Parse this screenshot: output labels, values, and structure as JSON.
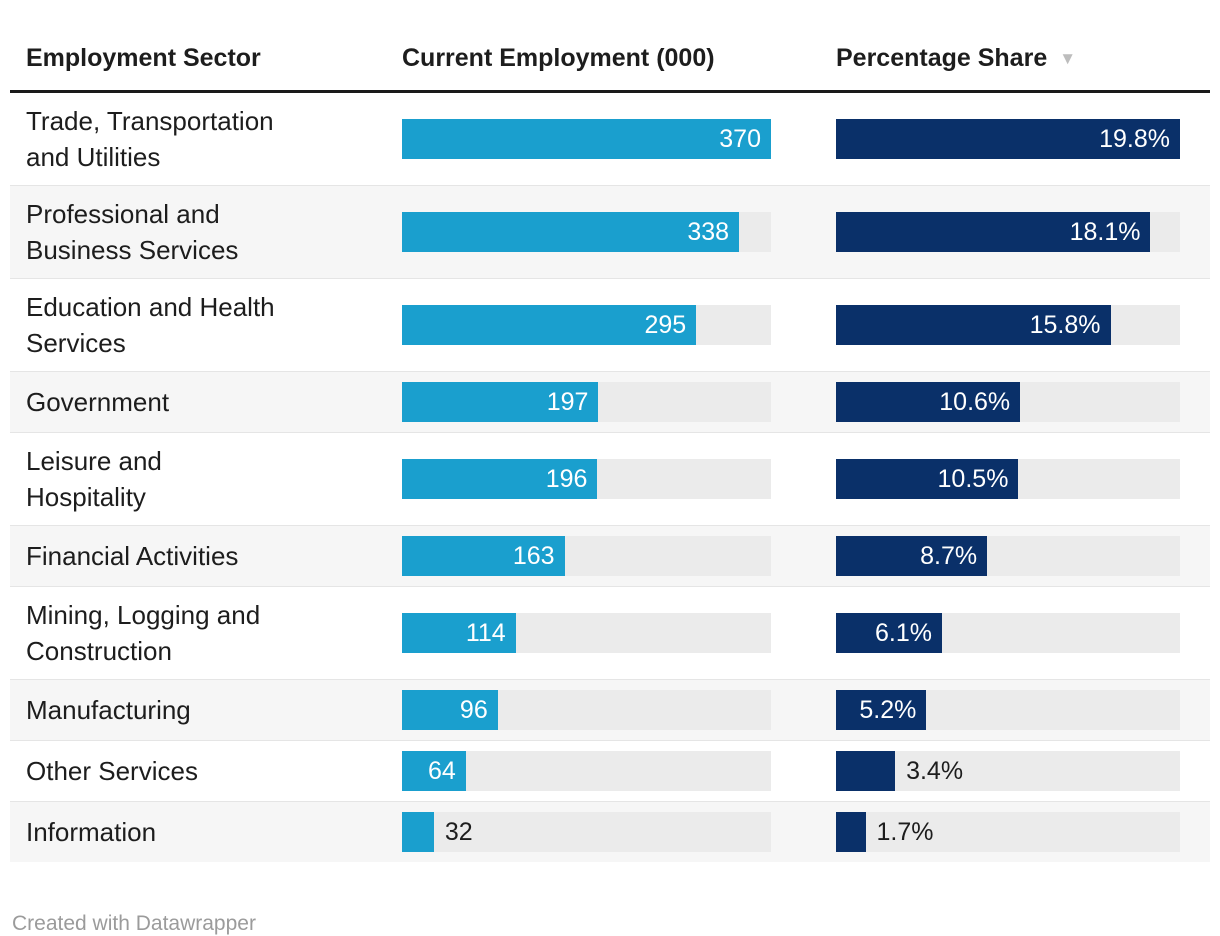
{
  "header": {
    "col1": "Employment Sector",
    "col2": "Current Employment (000)",
    "col3": "Percentage Share",
    "sort_icon": "▼"
  },
  "footer": {
    "credit": "Created with Datawrapper"
  },
  "colors": {
    "employment_bar": "#1a9fce",
    "share_bar": "#0a3069",
    "track": "#ebebeb",
    "row_stripe": "#f6f6f6",
    "header_rule": "#1a1a1a",
    "header_text": "#1d1d1d",
    "outside_label_text": "#1d1d1d",
    "inside_label_text": "#ffffff",
    "sort_icon": "#bdbdbd",
    "credit_text": "#9b9b9b"
  },
  "chart_data": {
    "type": "table",
    "title": "",
    "columns": [
      "Employment Sector",
      "Current Employment (000)",
      "Percentage Share"
    ],
    "sorted_by": "Percentage Share",
    "sort_direction": "descending",
    "bar_axis": {
      "employment_max": 370,
      "share_max": 19.8
    },
    "rows": [
      {
        "sector": "Trade, Transportation\nand Utilities",
        "employment": 370,
        "employment_label": "370",
        "share": 19.8,
        "share_label": "19.8%"
      },
      {
        "sector": "Professional and\nBusiness Services",
        "employment": 338,
        "employment_label": "338",
        "share": 18.1,
        "share_label": "18.1%"
      },
      {
        "sector": "Education and Health\nServices",
        "employment": 295,
        "employment_label": "295",
        "share": 15.8,
        "share_label": "15.8%"
      },
      {
        "sector": "Government",
        "employment": 197,
        "employment_label": "197",
        "share": 10.6,
        "share_label": "10.6%"
      },
      {
        "sector": "Leisure and\nHospitality",
        "employment": 196,
        "employment_label": "196",
        "share": 10.5,
        "share_label": "10.5%"
      },
      {
        "sector": "Financial Activities",
        "employment": 163,
        "employment_label": "163",
        "share": 8.7,
        "share_label": "8.7%"
      },
      {
        "sector": "Mining, Logging and\nConstruction",
        "employment": 114,
        "employment_label": "114",
        "share": 6.1,
        "share_label": "6.1%"
      },
      {
        "sector": "Manufacturing",
        "employment": 96,
        "employment_label": "96",
        "share": 5.2,
        "share_label": "5.2%"
      },
      {
        "sector": "Other Services",
        "employment": 64,
        "employment_label": "64",
        "share": 3.4,
        "share_label": "3.4%"
      },
      {
        "sector": "Information",
        "employment": 32,
        "employment_label": "32",
        "share": 1.7,
        "share_label": "1.7%"
      }
    ]
  }
}
